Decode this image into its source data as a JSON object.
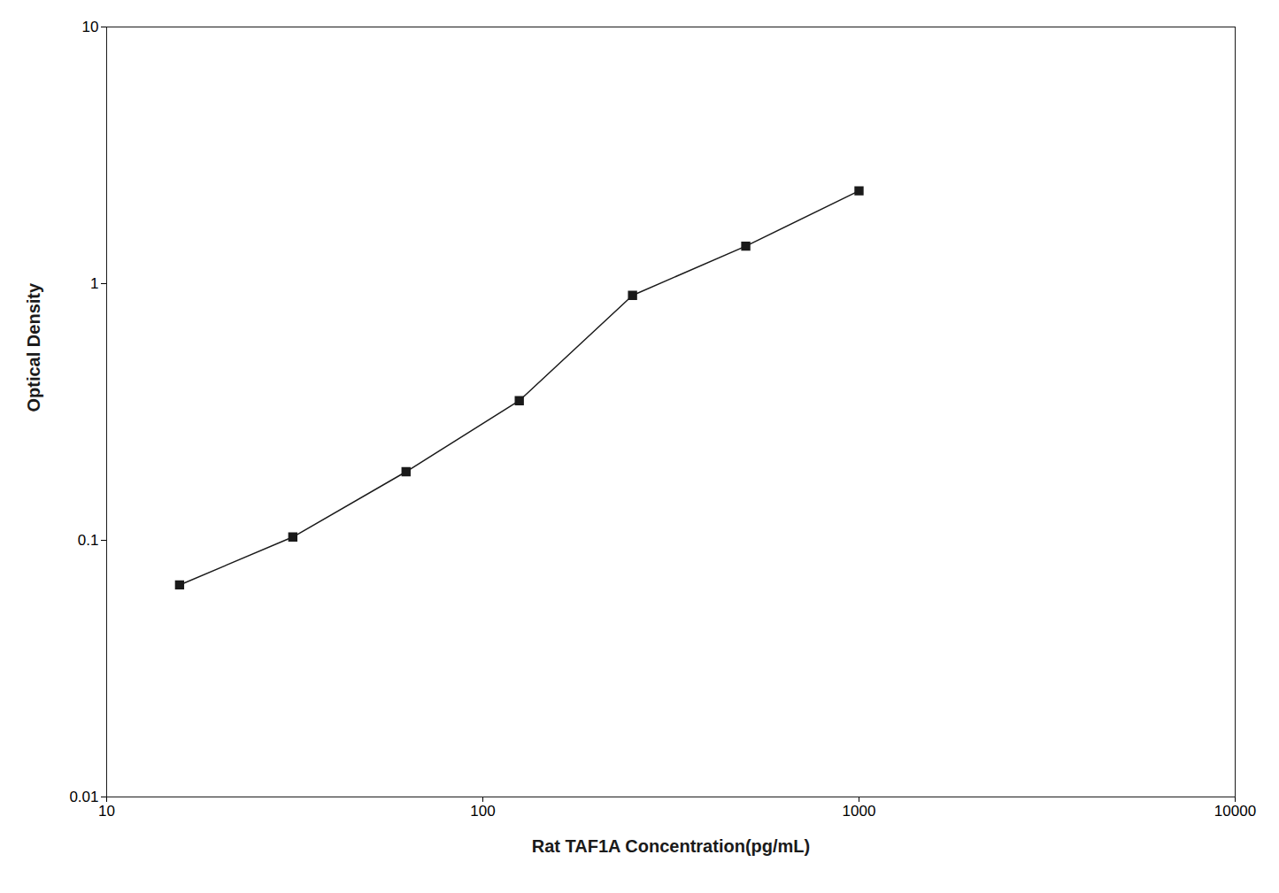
{
  "chart_data": {
    "type": "line",
    "x": [
      15.625,
      31.25,
      62.5,
      125,
      250,
      500,
      1000
    ],
    "values": [
      0.067,
      0.103,
      0.185,
      0.35,
      0.9,
      1.4,
      2.3
    ],
    "xlabel": "Rat TAF1A Concentration(pg/mL)",
    "ylabel": "Optical Density",
    "xlim": [
      10,
      10000
    ],
    "ylim": [
      0.01,
      10
    ],
    "xticks": [
      10,
      100,
      1000,
      10000
    ],
    "yticks": [
      0.01,
      0.1,
      1,
      10
    ],
    "log": true,
    "grid": false,
    "color": "#1a1a1a",
    "marker": "square",
    "line_style": "solid"
  }
}
